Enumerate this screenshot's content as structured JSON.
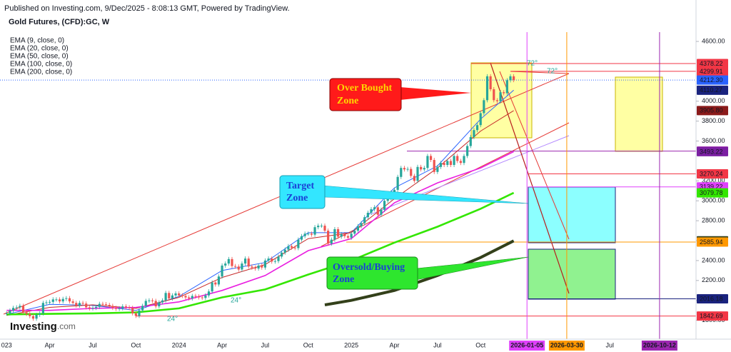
{
  "header": {
    "published": "Published on Investing.com, 9/Dec/2025 - 8:08:13 GMT, Powered by TradingView."
  },
  "logo": {
    "name": "Investing",
    "suffix": ".com"
  },
  "chart_data": {
    "type": "candlestick",
    "title": "Gold Futures, (CFD):GC, W",
    "up_color": "#26a69a",
    "down_color": "#ef5350",
    "xlim": [
      -2,
      208
    ],
    "ylim": [
      1611,
      5016
    ],
    "xticks": [
      {
        "value": 0,
        "label": "023"
      },
      {
        "value": 13,
        "label": "Apr"
      },
      {
        "value": 26,
        "label": "Jul"
      },
      {
        "value": 39,
        "label": "Oct"
      },
      {
        "value": 52,
        "label": "2024"
      },
      {
        "value": 65,
        "label": "Apr"
      },
      {
        "value": 78,
        "label": "Jul"
      },
      {
        "value": 91,
        "label": "Oct"
      },
      {
        "value": 104,
        "label": "2025"
      },
      {
        "value": 117,
        "label": "Apr"
      },
      {
        "value": 130,
        "label": "Jul"
      },
      {
        "value": 143,
        "label": "Oct"
      },
      {
        "value": 157,
        "label": "2026-01-05",
        "color": "#e040fb"
      },
      {
        "value": 169,
        "label": "2026-03-30",
        "color": "#ff9800"
      },
      {
        "value": 182,
        "label": "Jul"
      },
      {
        "value": 197,
        "label": "2026-10-12",
        "color": "#9c27b0"
      }
    ],
    "yticks": [
      {
        "value": 4600,
        "label": "4600.00"
      },
      {
        "value": 4000,
        "label": "4000.00"
      },
      {
        "value": 3800,
        "label": "3800.00"
      },
      {
        "value": 3600,
        "label": "3600.00"
      },
      {
        "value": 3200,
        "label": "3200.00"
      },
      {
        "value": 3000,
        "label": "3000.00"
      },
      {
        "value": 2800,
        "label": "2800.00"
      },
      {
        "value": 2600,
        "label": "2600.00"
      },
      {
        "value": 2400,
        "label": "2400.00"
      },
      {
        "value": 2200,
        "label": "2200.00"
      },
      {
        "value": 2000,
        "label": "2000.00"
      },
      {
        "value": 1800,
        "label": "1800.00"
      }
    ],
    "close": [
      1870,
      1898,
      1925,
      1930,
      1945,
      1880,
      1865,
      1842,
      1817,
      1855,
      1870,
      1975,
      1980,
      1985,
      2010,
      2010,
      1990,
      2015,
      2022,
      1990,
      1975,
      1948,
      1975,
      1968,
      1930,
      1920,
      1925,
      1935,
      1965,
      1962,
      1955,
      1945,
      1925,
      1915,
      1920,
      1940,
      1930,
      1925,
      1870,
      1845,
      1900,
      1945,
      1995,
      2000,
      1995,
      1940,
      1980,
      2000,
      2075,
      2020,
      2050,
      2070,
      2050,
      2045,
      2030,
      2020,
      2045,
      2040,
      2030,
      2025,
      2050,
      2090,
      2180,
      2160,
      2240,
      2350,
      2370,
      2415,
      2345,
      2340,
      2310,
      2370,
      2420,
      2340,
      2330,
      2320,
      2350,
      2330,
      2400,
      2420,
      2390,
      2395,
      2440,
      2480,
      2510,
      2545,
      2530,
      2525,
      2610,
      2645,
      2670,
      2670,
      2660,
      2735,
      2750,
      2750,
      2700,
      2570,
      2610,
      2715,
      2640,
      2665,
      2645,
      2630,
      2670,
      2700,
      2745,
      2775,
      2835,
      2880,
      2915,
      2935,
      2860,
      2910,
      3000,
      3025,
      3085,
      3110,
      3240,
      3330,
      3315,
      3320,
      3250,
      3200,
      3340,
      3315,
      3330,
      3450,
      3410,
      3290,
      3340,
      3380,
      3360,
      3400,
      3360,
      3450,
      3400,
      3380,
      3450,
      3550,
      3640,
      3710,
      3760,
      3880,
      4010,
      4250,
      4120,
      4010,
      4000,
      4090,
      4080,
      4210,
      4250,
      4212.3
    ],
    "series": [
      {
        "name": "EMA (9, close, 0)",
        "color": "#2962ff",
        "width": 1,
        "x": [
          0,
          13,
          26,
          39,
          52,
          65,
          78,
          91,
          104,
          117,
          130,
          143,
          153
        ],
        "values": [
          1860,
          1960,
          1950,
          1900,
          2040,
          2300,
          2380,
          2680,
          2680,
          3130,
          3350,
          3820,
          4110.27
        ]
      },
      {
        "name": "EMA (20, close, 0)",
        "color": "#c62828",
        "width": 1,
        "x": [
          0,
          13,
          26,
          39,
          52,
          65,
          78,
          91,
          104,
          117,
          130,
          143,
          153
        ],
        "values": [
          1850,
          1930,
          1955,
          1920,
          2030,
          2230,
          2360,
          2620,
          2680,
          3020,
          3330,
          3700,
          3905.8
        ]
      },
      {
        "name": "EMA (50, close, 0)",
        "color": "#e91ee0",
        "width": 1.6,
        "x": [
          0,
          13,
          26,
          39,
          52,
          65,
          78,
          91,
          104,
          117,
          130,
          143,
          153
        ],
        "values": [
          1900,
          1900,
          1920,
          1930,
          1985,
          2100,
          2250,
          2500,
          2620,
          2980,
          3180,
          3330,
          3493.22
        ]
      },
      {
        "name": "EMA (100, close, 0)",
        "color": "#33e600",
        "width": 2.6,
        "x": [
          0,
          13,
          26,
          39,
          52,
          65,
          78,
          91,
          104,
          117,
          130,
          143,
          153
        ],
        "values": [
          1860,
          1865,
          1870,
          1880,
          1920,
          2030,
          2110,
          2260,
          2400,
          2580,
          2740,
          2920,
          3079.78
        ]
      },
      {
        "name": "EMA (200, close, 0)",
        "color": "#33401a",
        "width": 4,
        "x": [
          96,
          104,
          117,
          130,
          143,
          153
        ],
        "values": [
          1955,
          2000,
          2100,
          2250,
          2430,
          2598.44
        ]
      }
    ],
    "levels": [
      {
        "value": 4378.22,
        "color": "#f23645"
      },
      {
        "value": 4299.91,
        "color": "#f23645"
      },
      {
        "value": 4212.3,
        "label": "4212.30",
        "color": "#2962ff"
      },
      {
        "value": 4110.27,
        "color": "#1a237e"
      },
      {
        "value": 3905.8,
        "label": "3905.80",
        "color": "#8b1a1a"
      },
      {
        "value": 3498.82,
        "color": "#9c27b0"
      },
      {
        "value": 3493.22,
        "color": "#7b1fa2"
      },
      {
        "value": 3270.24,
        "color": "#f23645"
      },
      {
        "value": 3139.22,
        "color": "#e040fb"
      },
      {
        "value": 3079.78,
        "color": "#33e600"
      },
      {
        "value": 2598.44,
        "color": "#33401a"
      },
      {
        "value": 2585.94,
        "color": "#ff9800"
      },
      {
        "value": 2016.18,
        "color": "#1a237e"
      },
      {
        "value": 1842.69,
        "color": "#f23645"
      }
    ],
    "annotations": {
      "overbought": [
        "Over Bought",
        "Zone"
      ],
      "target": [
        "Target",
        "Zone"
      ],
      "oversold": [
        "Oversold/Buying",
        "Zone"
      ],
      "angles": [
        "72°",
        "72°",
        "24°",
        "24°"
      ]
    }
  }
}
